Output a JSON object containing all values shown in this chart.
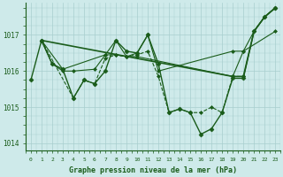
{
  "xlabel": "Graphe pression niveau de la mer (hPa)",
  "background_color": "#ceeaea",
  "line_color": "#1a5c1a",
  "grid_color": "#a8cece",
  "ylim": [
    1013.8,
    1017.9
  ],
  "xlim": [
    -0.5,
    23.5
  ],
  "yticks": [
    1014,
    1015,
    1016,
    1017
  ],
  "xticks": [
    0,
    1,
    2,
    3,
    4,
    5,
    6,
    7,
    8,
    9,
    10,
    11,
    12,
    13,
    14,
    15,
    16,
    17,
    18,
    19,
    20,
    21,
    22,
    23
  ],
  "series": [
    {
      "x": [
        0,
        1,
        2,
        3,
        4,
        5,
        6,
        7,
        8,
        9,
        10,
        11,
        12,
        13,
        14,
        15,
        16,
        17,
        18,
        19,
        20,
        21,
        22,
        23
      ],
      "y": [
        1015.75,
        1016.85,
        1016.2,
        1016.05,
        1015.25,
        1015.75,
        1015.65,
        1016.0,
        1016.85,
        1016.55,
        1016.5,
        1017.0,
        1016.2,
        1014.85,
        1014.95,
        1014.85,
        1014.25,
        1014.4,
        1014.85,
        1015.8,
        1015.8,
        1017.1,
        1017.5,
        1017.75
      ],
      "style": "-",
      "marker": "D",
      "linewidth": 1.0,
      "markersize": 2.5
    },
    {
      "x": [
        1,
        2,
        3,
        4,
        6,
        7,
        8,
        9,
        10,
        19,
        20,
        23
      ],
      "y": [
        1016.85,
        1016.2,
        1016.0,
        1016.0,
        1016.05,
        1016.45,
        1016.45,
        1016.4,
        1016.4,
        1015.85,
        1016.55,
        1017.1
      ],
      "style": "-",
      "marker": "D",
      "linewidth": 0.8,
      "markersize": 2.0
    },
    {
      "x": [
        1,
        3,
        7,
        8,
        9,
        10,
        11,
        12,
        19,
        20,
        21,
        22,
        23
      ],
      "y": [
        1016.85,
        1016.05,
        1016.45,
        1016.85,
        1016.4,
        1016.5,
        1017.0,
        1016.0,
        1016.55,
        1016.55,
        1017.1,
        1017.5,
        1017.75
      ],
      "style": "-",
      "marker": "D",
      "linewidth": 0.8,
      "markersize": 2.0
    },
    {
      "x": [
        1,
        4,
        5,
        6,
        7,
        8,
        9,
        10,
        11,
        12,
        13,
        14,
        15,
        16,
        17,
        18,
        19,
        20
      ],
      "y": [
        1016.85,
        1015.25,
        1015.75,
        1015.65,
        1016.35,
        1016.45,
        1016.4,
        1016.45,
        1016.55,
        1015.85,
        1014.85,
        1014.95,
        1014.85,
        1014.85,
        1015.0,
        1014.85,
        1015.85,
        1015.85
      ],
      "style": "--",
      "marker": "D",
      "linewidth": 0.8,
      "markersize": 2.0
    },
    {
      "x": [
        1,
        19,
        20,
        21,
        22,
        23
      ],
      "y": [
        1016.85,
        1015.85,
        1015.85,
        1017.1,
        1017.5,
        1017.75
      ],
      "style": "-",
      "marker": "D",
      "linewidth": 1.2,
      "markersize": 2.0
    }
  ]
}
